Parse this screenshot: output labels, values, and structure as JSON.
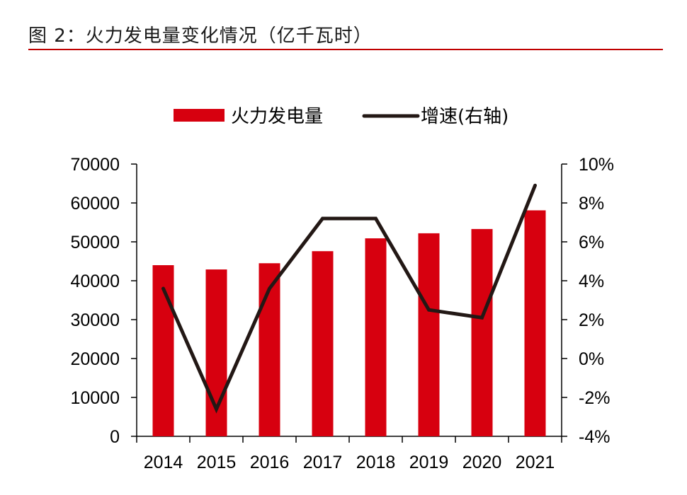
{
  "header": {
    "title": "图 2：火力发电量变化情况（亿千瓦时）",
    "rule_color": "#c00000"
  },
  "chart_data": {
    "type": "bar",
    "title": "图 2：火力发电量变化情况（亿千瓦时）",
    "categories": [
      "2014",
      "2015",
      "2016",
      "2017",
      "2018",
      "2019",
      "2020",
      "2021"
    ],
    "series": [
      {
        "name": "火力发电量",
        "type": "bar",
        "axis": "left",
        "color": "#d7000f",
        "values": [
          44000,
          42900,
          44500,
          47600,
          50900,
          52200,
          53300,
          58100
        ]
      },
      {
        "name": "增速(右轴)",
        "type": "line",
        "axis": "right",
        "color": "#231815",
        "values": [
          3.6,
          -2.6,
          3.6,
          7.2,
          7.2,
          2.5,
          2.1,
          8.9
        ]
      }
    ],
    "left_axis": {
      "ylim": [
        0,
        70000
      ],
      "ticks": [
        0,
        10000,
        20000,
        30000,
        40000,
        50000,
        60000,
        70000
      ],
      "tick_labels": [
        "0",
        "10000",
        "20000",
        "30000",
        "40000",
        "50000",
        "60000",
        "70000"
      ]
    },
    "right_axis": {
      "ylim": [
        -4,
        10
      ],
      "ticks": [
        -4,
        -2,
        0,
        2,
        4,
        6,
        8,
        10
      ],
      "tick_labels": [
        "-4%",
        "-2%",
        "0%",
        "2%",
        "4%",
        "6%",
        "8%",
        "10%"
      ]
    },
    "xlabel": "",
    "ylabel": "",
    "legend": {
      "position": "top-center",
      "entries": [
        "火力发电量",
        "增速(右轴)"
      ]
    },
    "grid": false
  }
}
